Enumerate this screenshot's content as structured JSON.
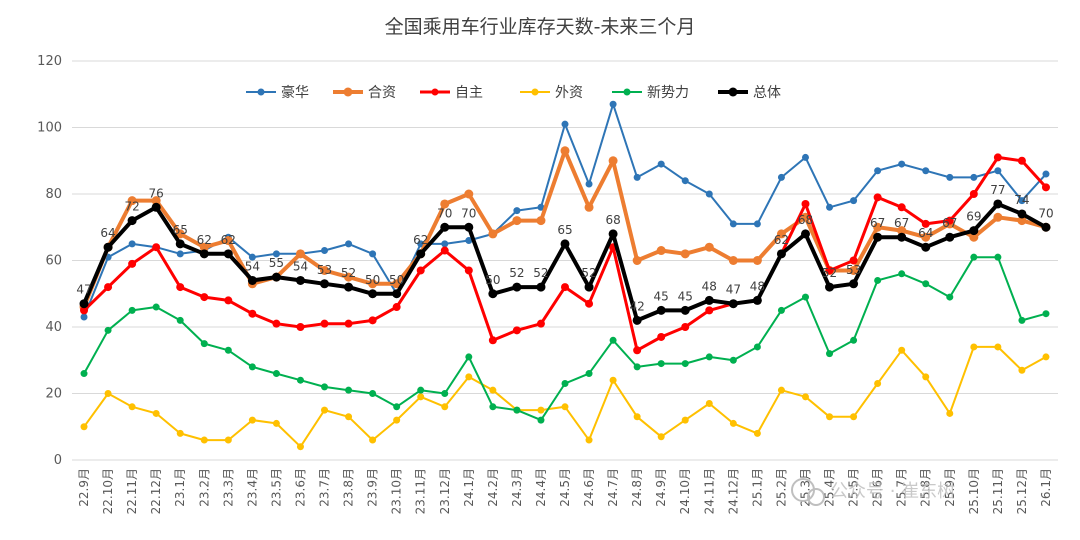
{
  "chart_data": {
    "type": "line",
    "title": "全国乘用车行业库存天数-未来三个月",
    "xlabel": "",
    "ylabel": "",
    "ylim": [
      0,
      120
    ],
    "yticks": [
      0,
      20,
      40,
      60,
      80,
      100,
      120
    ],
    "grid": true,
    "legend_position": "top",
    "categories": [
      "22.9月",
      "22.10月",
      "22.11月",
      "22.12月",
      "23.1月",
      "23.2月",
      "23.3月",
      "23.4月",
      "23.5月",
      "23.6月",
      "23.7月",
      "23.8月",
      "23.9月",
      "23.10月",
      "23.11月",
      "23.12月",
      "24.1月",
      "24.2月",
      "24.3月",
      "24.4月",
      "24.5月",
      "24.6月",
      "24.7月",
      "24.8月",
      "24.9月",
      "24.10月",
      "24.11月",
      "24.12月",
      "25.1月",
      "25.2月",
      "25.3月",
      "25.4月",
      "25.5月",
      "25.6月",
      "25.7月",
      "25.8月",
      "25.9月",
      "25.10月",
      "25.11月",
      "25.12月",
      "26.1月"
    ],
    "series": [
      {
        "name": "豪华",
        "color": "#2e75b6",
        "width": 2,
        "values": [
          43,
          61,
          65,
          64,
          62,
          63,
          67,
          61,
          62,
          62,
          63,
          65,
          62,
          50,
          65,
          65,
          66,
          68,
          75,
          76,
          101,
          83,
          107,
          85,
          89,
          84,
          80,
          71,
          71,
          85,
          91,
          76,
          78,
          87,
          89,
          87,
          85,
          85,
          87,
          78,
          86
        ]
      },
      {
        "name": "合资",
        "color": "#ed7d31",
        "width": 4,
        "values": [
          46,
          64,
          78,
          78,
          68,
          64,
          66,
          53,
          55,
          62,
          57,
          55,
          53,
          53,
          62,
          77,
          80,
          68,
          72,
          72,
          93,
          76,
          90,
          60,
          63,
          62,
          64,
          60,
          60,
          68,
          73,
          57,
          57,
          70,
          69,
          67,
          71,
          67,
          73,
          72,
          70
        ]
      },
      {
        "name": "自主",
        "color": "#ff0000",
        "width": 3,
        "values": [
          45,
          52,
          59,
          64,
          52,
          49,
          48,
          44,
          41,
          40,
          41,
          41,
          42,
          46,
          57,
          63,
          57,
          36,
          39,
          41,
          52,
          47,
          64,
          33,
          37,
          40,
          45,
          47,
          48,
          62,
          77,
          57,
          60,
          79,
          76,
          71,
          72,
          80,
          91,
          90,
          82
        ]
      },
      {
        "name": "外资",
        "color": "#ffc000",
        "width": 2,
        "values": [
          10,
          20,
          16,
          14,
          8,
          6,
          6,
          12,
          11,
          4,
          15,
          13,
          6,
          12,
          19,
          16,
          25,
          21,
          15,
          15,
          16,
          6,
          24,
          13,
          7,
          12,
          17,
          11,
          8,
          21,
          19,
          13,
          13,
          23,
          33,
          25,
          14,
          34,
          34,
          27,
          31
        ]
      },
      {
        "name": "新势力",
        "color": "#00b050",
        "width": 2,
        "values": [
          26,
          39,
          45,
          46,
          42,
          35,
          33,
          28,
          26,
          24,
          22,
          21,
          20,
          16,
          21,
          20,
          31,
          16,
          15,
          12,
          23,
          26,
          36,
          28,
          29,
          29,
          31,
          30,
          34,
          45,
          49,
          32,
          36,
          54,
          56,
          53,
          49,
          61,
          61,
          42,
          44
        ]
      },
      {
        "name": "总体",
        "color": "#000000",
        "width": 4,
        "values": [
          47,
          64,
          72,
          76,
          65,
          62,
          62,
          54,
          55,
          54,
          53,
          52,
          50,
          50,
          62,
          70,
          70,
          50,
          52,
          52,
          65,
          52,
          68,
          42,
          45,
          45,
          48,
          47,
          48,
          62,
          68,
          52,
          53,
          67,
          67,
          64,
          67,
          69,
          77,
          74,
          70
        ]
      }
    ],
    "data_labels": {
      "series": "总体",
      "values": [
        "47",
        "64",
        "72",
        "76",
        "65",
        "62",
        "62",
        "54",
        "55",
        "54",
        "53",
        "52",
        "50",
        "50",
        "62",
        "70",
        "70",
        "50",
        "52",
        "52",
        "65",
        "52",
        "68",
        "42",
        "45",
        "45",
        "48",
        "47",
        "48",
        "62",
        "68",
        "52",
        "53",
        "67",
        "67",
        "64",
        "67",
        "69",
        "77",
        "74",
        "70"
      ]
    }
  },
  "watermark": {
    "text": "公众号 · 崔东树"
  }
}
